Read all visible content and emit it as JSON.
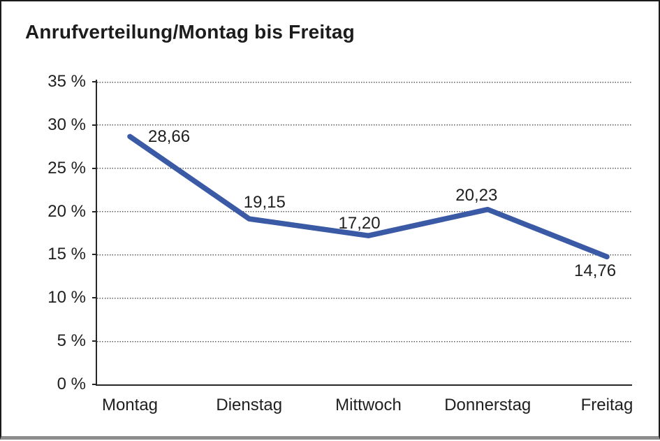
{
  "window": {
    "background": "#ffffff",
    "frame_border_color": "#1b1b1b",
    "frame_shadow_color": "#8c8c8c"
  },
  "chart_data": {
    "type": "line",
    "title": "Anrufverteilung/Montag bis Freitag",
    "categories": [
      "Montag",
      "Dienstag",
      "Mittwoch",
      "Donnerstag",
      "Freitag"
    ],
    "series": [
      {
        "name": "Anrufverteilung",
        "values": [
          28.66,
          19.15,
          17.2,
          20.23,
          14.76
        ],
        "color": "#3A5AA6"
      }
    ],
    "data_labels": [
      "28,66",
      "19,15",
      "17,20",
      "20,23",
      "14,76"
    ],
    "y_ticks": [
      "35 %",
      "30 %",
      "25 %",
      "20 %",
      "15 %",
      "10 %",
      "5 %",
      "0 %"
    ],
    "ylim": [
      0,
      35
    ],
    "y_step": 5,
    "xlabel": "",
    "ylabel": "",
    "grid": "horizontal-dotted",
    "legend": "none",
    "axis_color": "#262626",
    "grid_color": "#5e5e5e",
    "text_color": "#1f1f1f"
  }
}
